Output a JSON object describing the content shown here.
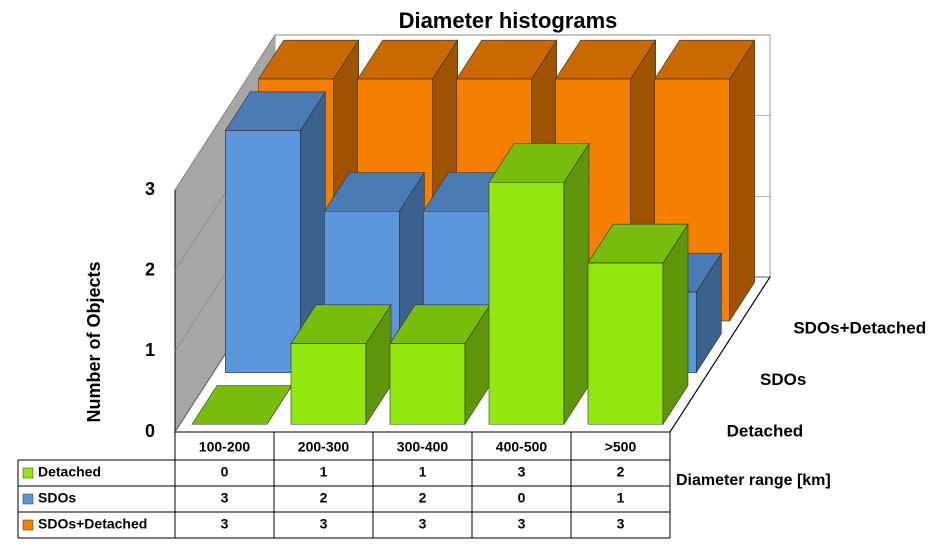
{
  "chart_data": {
    "type": "bar3d",
    "title": "Diameter  histograms",
    "y_label": "Number of Objects",
    "x_label": "Diameter range [km]",
    "categories": [
      "100-200",
      "200-300",
      "300-400",
      "400-500",
      ">500"
    ],
    "series": [
      {
        "name": "Detached",
        "color": "#92e70e",
        "values": [
          0,
          1,
          1,
          3,
          2
        ]
      },
      {
        "name": "SDOs",
        "color": "#5b96dc",
        "values": [
          3,
          2,
          2,
          0,
          1
        ]
      },
      {
        "name": "SDOs+Detached",
        "color": "#f58000",
        "values": [
          3,
          3,
          3,
          3,
          3
        ]
      }
    ],
    "ylim": [
      0,
      3
    ],
    "yticks": [
      0,
      1,
      2,
      3
    ],
    "grid": true
  }
}
